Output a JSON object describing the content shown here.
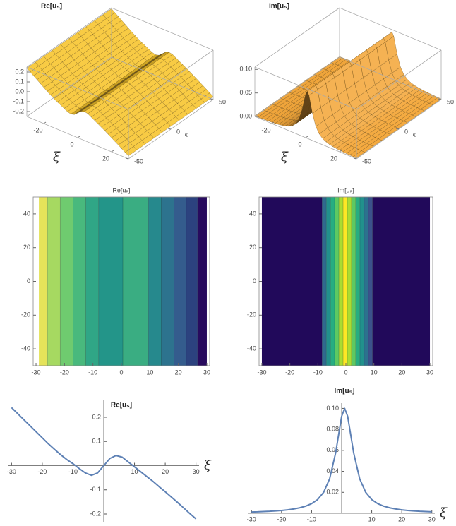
{
  "chart_data": [
    {
      "type": "surface",
      "title": "Re[u₅]",
      "xlabel": "ξ",
      "ylabel": "ϵ",
      "color": "#f7c42a",
      "x": [
        -30,
        -28,
        -26,
        -24,
        -22,
        -20,
        -18,
        -16,
        -14,
        -12,
        -10,
        -8,
        -6,
        -4,
        -2,
        0,
        2,
        4,
        6,
        8,
        10,
        12,
        14,
        16,
        18,
        20,
        22,
        24,
        26,
        28,
        30
      ],
      "values": [
        0.24,
        0.215,
        0.19,
        0.165,
        0.14,
        0.115,
        0.09,
        0.067,
        0.045,
        0.025,
        0.008,
        -0.012,
        -0.03,
        -0.04,
        -0.03,
        0.0,
        0.03,
        0.042,
        0.035,
        0.015,
        -0.005,
        -0.025,
        -0.045,
        -0.065,
        -0.087,
        -0.108,
        -0.13,
        -0.152,
        -0.175,
        -0.198,
        -0.22
      ],
      "xlim": [
        -30,
        30
      ],
      "ylim": [
        -50,
        50
      ],
      "zlim": [
        -0.25,
        0.25
      ],
      "xticks": [
        -20,
        0,
        20
      ],
      "yticks": [
        -50,
        0,
        50
      ],
      "zticks": [
        -0.2,
        -0.1,
        {
          "value": 0,
          "label": "0.0"
        },
        0.1,
        0.2
      ]
    },
    {
      "type": "surface",
      "title": "Im[u₅]",
      "xlabel": "ξ",
      "ylabel": "ϵ",
      "color": "#f4a83c",
      "x": [
        -30,
        -28,
        -26,
        -24,
        -22,
        -20,
        -18,
        -16,
        -14,
        -12,
        -10,
        -8,
        -6,
        -4,
        -2,
        0,
        1,
        2,
        4,
        6,
        8,
        10,
        12,
        14,
        16,
        18,
        20,
        22,
        24,
        26,
        28,
        30
      ],
      "values": [
        0.0013,
        0.0014,
        0.0017,
        0.0019,
        0.0023,
        0.0027,
        0.0033,
        0.0041,
        0.0052,
        0.0068,
        0.0092,
        0.0131,
        0.02,
        0.0329,
        0.0576,
        0.0925,
        0.1,
        0.0925,
        0.0576,
        0.0329,
        0.02,
        0.0131,
        0.0092,
        0.0068,
        0.0052,
        0.0041,
        0.0033,
        0.0027,
        0.0023,
        0.0019,
        0.0017,
        0.0014
      ],
      "xlim": [
        -30,
        30
      ],
      "ylim": [
        -50,
        50
      ],
      "zlim": [
        0,
        0.105
      ],
      "xticks": [
        -20,
        0,
        20
      ],
      "yticks": [
        -50,
        0,
        50
      ],
      "zticks": [
        {
          "value": 0,
          "label": "0.00"
        },
        0.05,
        {
          "value": 0.1,
          "label": "0.10"
        }
      ]
    },
    {
      "type": "contour",
      "title": "Re[u₅]",
      "edges": [
        -29,
        -26,
        -21.5,
        -17,
        -12.5,
        -8,
        0.5,
        9.5,
        14,
        18.5,
        22.75,
        26.75,
        30
      ],
      "colors": [
        "#e5e35a",
        "#a6d961",
        "#6fcb6f",
        "#49b97d",
        "#30a686",
        "#239589",
        "#3aad82",
        "#26898d",
        "#2d738e",
        "#345c8d",
        "#2c427f",
        "#280b5e"
      ],
      "xlim": [
        -31,
        31
      ],
      "ylim": [
        -50,
        50
      ],
      "xticks": [
        -30,
        -20,
        -10,
        0,
        10,
        20,
        30
      ],
      "yticks": [
        -40,
        -20,
        0,
        20,
        40
      ]
    },
    {
      "type": "contour",
      "title": "Im[u₅]",
      "edges": [
        -30,
        -8.5,
        -7,
        -5.5,
        -4,
        -2.5,
        -1,
        0.5,
        2,
        3.5,
        5,
        6.5,
        8,
        9.5,
        30
      ],
      "colors": [
        "#21095a",
        "#2f6a8e",
        "#21918c",
        "#27ad81",
        "#5ec962",
        "#aadc32",
        "#fde725",
        "#aadc32",
        "#5ec962",
        "#27ad81",
        "#21918c",
        "#2c728e",
        "#3b528b",
        "#21095a"
      ],
      "xlim": [
        -31,
        31
      ],
      "ylim": [
        -50,
        50
      ],
      "xticks": [
        -30,
        -20,
        -10,
        0,
        10,
        20,
        30
      ],
      "yticks": [
        -40,
        -20,
        0,
        20,
        40
      ]
    },
    {
      "type": "line",
      "title": "Re[u₅]",
      "xlabel": "ξ",
      "color": "#5e81b5",
      "x": [
        -30,
        -28,
        -26,
        -24,
        -22,
        -20,
        -18,
        -16,
        -14,
        -12,
        -10,
        -8,
        -6,
        -4,
        -2,
        0,
        2,
        4,
        6,
        8,
        10,
        12,
        14,
        16,
        18,
        20,
        22,
        24,
        26,
        28,
        30
      ],
      "values": [
        0.24,
        0.215,
        0.19,
        0.165,
        0.14,
        0.115,
        0.09,
        0.067,
        0.045,
        0.025,
        0.008,
        -0.012,
        -0.03,
        -0.04,
        -0.03,
        0.0,
        0.03,
        0.042,
        0.035,
        0.015,
        -0.005,
        -0.025,
        -0.045,
        -0.065,
        -0.087,
        -0.108,
        -0.13,
        -0.152,
        -0.175,
        -0.198,
        -0.22
      ],
      "xlim": [
        -31,
        31
      ],
      "ylim": [
        -0.235,
        0.27
      ],
      "xticks": [
        -30,
        -20,
        -10,
        10,
        20,
        30
      ],
      "yticks": [
        -0.2,
        -0.1,
        0.1,
        0.2
      ]
    },
    {
      "type": "line",
      "title": "Im[u₅]",
      "xlabel": "ξ",
      "color": "#5e81b5",
      "x": [
        -30,
        -28,
        -26,
        -24,
        -22,
        -20,
        -18,
        -16,
        -14,
        -12,
        -10,
        -8,
        -6,
        -4,
        -2,
        0,
        1,
        2,
        4,
        6,
        8,
        10,
        12,
        14,
        16,
        18,
        20,
        22,
        24,
        26,
        28,
        30
      ],
      "values": [
        0.0013,
        0.0014,
        0.0017,
        0.0019,
        0.0023,
        0.0027,
        0.0033,
        0.0041,
        0.0052,
        0.0068,
        0.0092,
        0.0131,
        0.02,
        0.0329,
        0.0576,
        0.0925,
        0.1,
        0.0925,
        0.0576,
        0.0329,
        0.02,
        0.0131,
        0.0092,
        0.0068,
        0.0052,
        0.0041,
        0.0033,
        0.0027,
        0.0023,
        0.0019,
        0.0017,
        0.0014
      ],
      "xlim": [
        -31,
        31
      ],
      "ylim": [
        0,
        0.105
      ],
      "xticks": [
        -30,
        -20,
        -10,
        10,
        20,
        30
      ],
      "yticks": [
        0.02,
        0.04,
        0.06,
        0.08,
        {
          "value": 0.1,
          "label": "0.10"
        }
      ]
    }
  ]
}
